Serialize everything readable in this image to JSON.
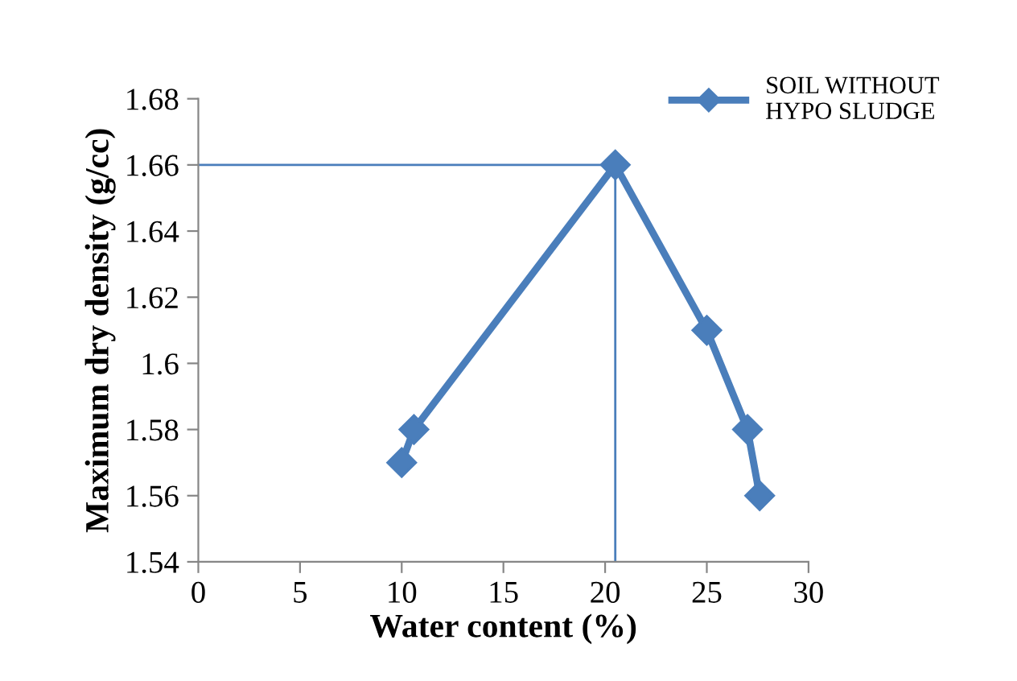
{
  "chart_data": {
    "type": "line",
    "xlabel": "Water content (%)",
    "ylabel": "Maximum dry density (g/cc)",
    "xlim": [
      0,
      30
    ],
    "xticks": [
      0,
      5,
      10,
      15,
      20,
      25,
      30
    ],
    "ylim": [
      1.54,
      1.68
    ],
    "yticks": [
      1.54,
      1.56,
      1.58,
      1.6,
      1.62,
      1.64,
      1.66,
      1.68
    ],
    "grid": false,
    "legend": "top right",
    "line_style": "solid",
    "series": [
      {
        "name": "SOIL WITHOUT HYPO SLUDGE",
        "color": "#4a7ebb",
        "marker": "diamond",
        "x": [
          10,
          10.6,
          20.5,
          25,
          27,
          27.6
        ],
        "values": [
          1.57,
          1.58,
          1.66,
          1.61,
          1.58,
          1.56
        ]
      },
      {
        "color": "#4a7ebb",
        "marker": "none",
        "x": [
          0,
          20.5,
          20.5
        ],
        "values": [
          1.66,
          1.66,
          1.54
        ]
      }
    ]
  }
}
